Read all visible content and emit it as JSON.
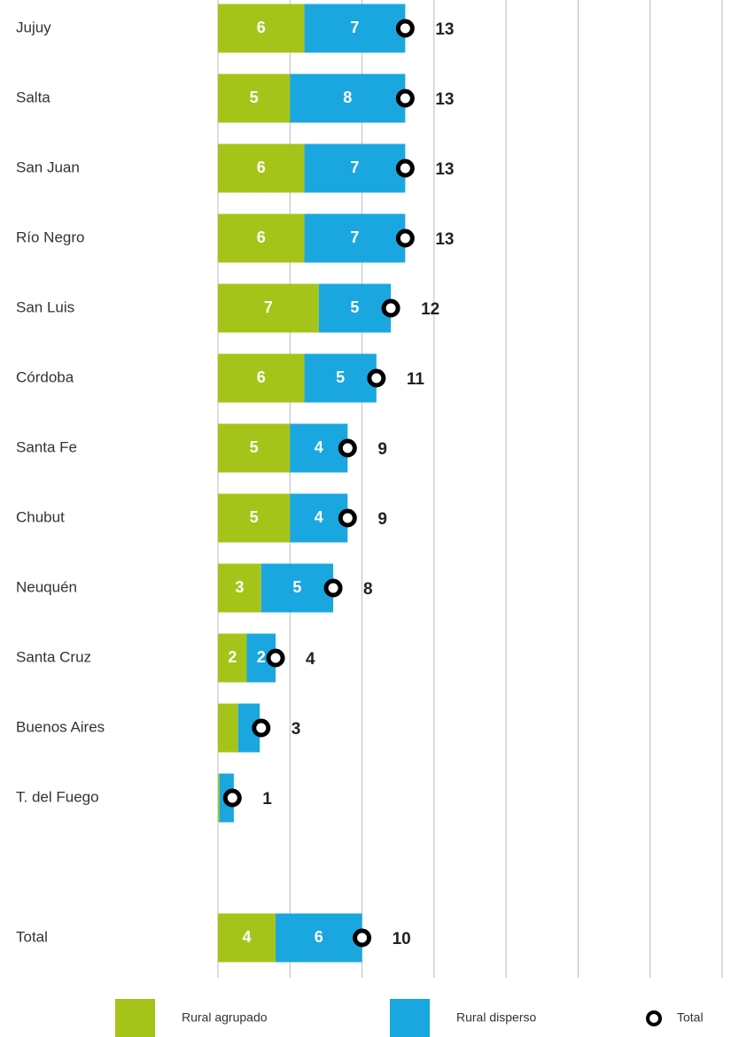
{
  "chart_data": {
    "type": "stacked_barh",
    "categories": [
      "Jujuy",
      "Salta",
      "San Juan",
      "Río Negro",
      "San Luis",
      "Córdoba",
      "Santa Fe",
      "Chubut",
      "Neuquén",
      "Santa Cruz",
      "Buenos Aires",
      "T. del Fuego",
      null,
      "Total"
    ],
    "series": [
      {
        "name": "Rural agrupado",
        "color": "#a5c41a",
        "values": [
          6,
          5,
          6,
          6,
          7,
          6,
          5,
          5,
          3,
          2,
          1.4,
          0.1,
          null,
          4
        ],
        "value_labels": [
          "6",
          "5",
          "6",
          "6",
          "7",
          "6",
          "5",
          "5",
          "3",
          "2",
          null,
          null,
          null,
          "4"
        ]
      },
      {
        "name": "Rural disperso",
        "color": "#1aa7e0",
        "values": [
          7,
          8,
          7,
          7,
          5,
          5,
          4,
          4,
          5,
          2,
          1.5,
          1,
          null,
          6
        ],
        "value_labels": [
          "7",
          "8",
          "7",
          "7",
          "5",
          "5",
          "4",
          "4",
          "5",
          "2",
          null,
          null,
          null,
          "6"
        ]
      },
      {
        "name": "Total",
        "color": "#000000",
        "marker": "ring",
        "values": [
          13,
          13,
          13,
          13,
          12,
          11,
          9,
          9,
          8,
          4,
          3,
          1,
          null,
          10
        ]
      }
    ],
    "xlim": [
      0,
      35
    ],
    "xticks": [
      0,
      5,
      10,
      15,
      20,
      25,
      30,
      35
    ],
    "grid": true,
    "legend": "bottom"
  }
}
